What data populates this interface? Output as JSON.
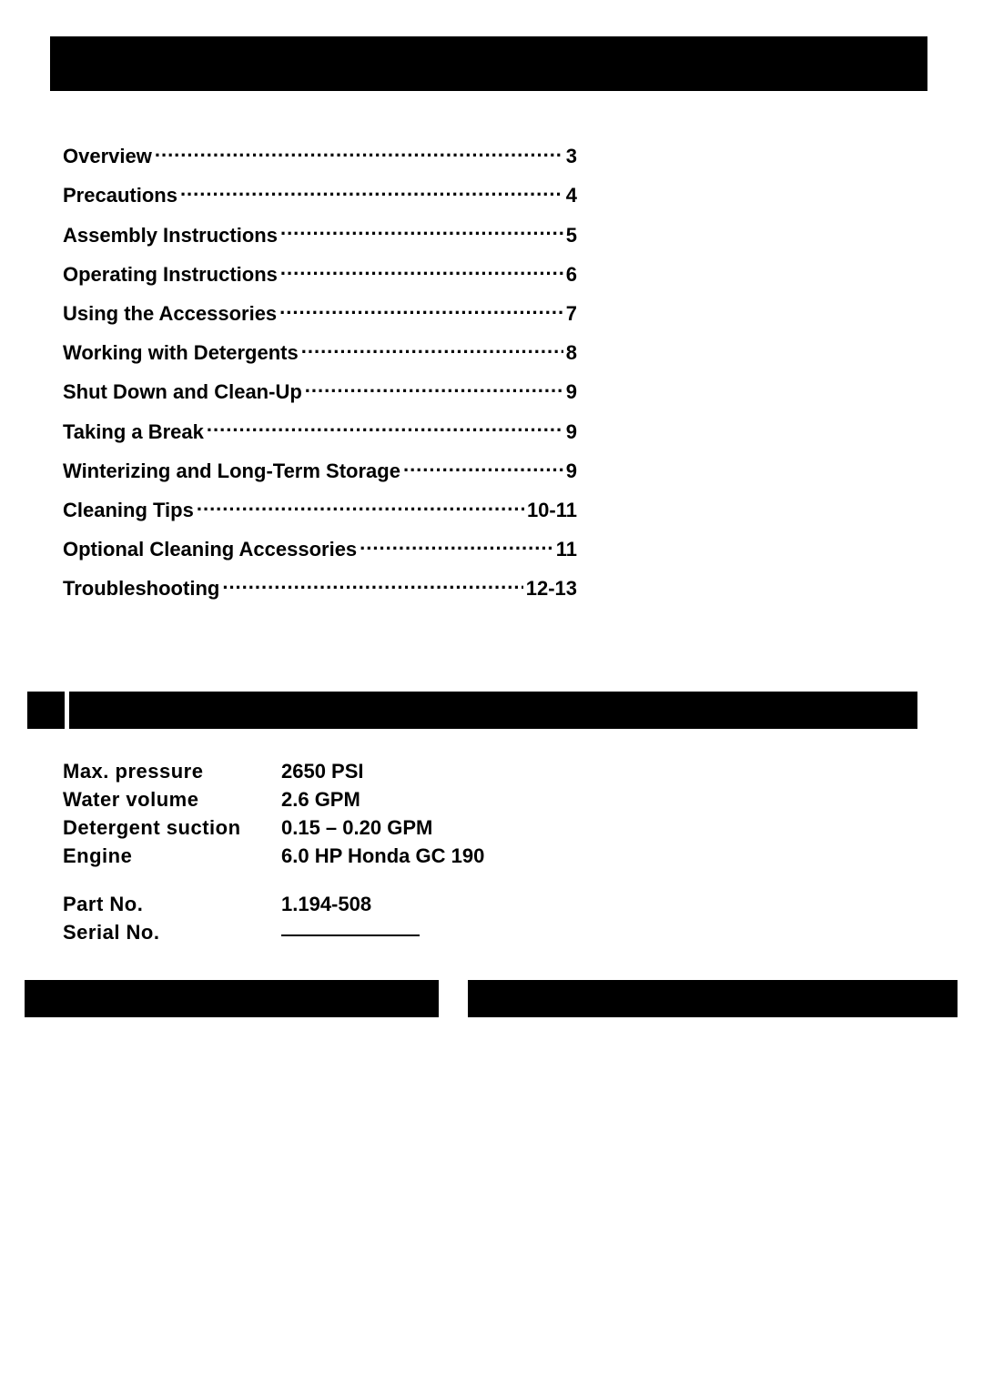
{
  "colors": {
    "text": "#000000",
    "bar": "#000000",
    "bg": "#ffffff"
  },
  "typography": {
    "family": "Arial",
    "size_pt": 16,
    "weight": "bold"
  },
  "toc": [
    {
      "title": "Overview",
      "page": "3"
    },
    {
      "title": "Precautions",
      "page": "4"
    },
    {
      "title": "Assembly Instructions",
      "page": "5"
    },
    {
      "title": "Operating Instructions",
      "page": "6"
    },
    {
      "title": "Using the Accessories",
      "page": "7"
    },
    {
      "title": "Working with Detergents",
      "page": "8"
    },
    {
      "title": "Shut Down and Clean-Up",
      "page": "9"
    },
    {
      "title": "Taking a Break",
      "page": "9"
    },
    {
      "title": "Winterizing and Long-Term Storage",
      "page": "9"
    },
    {
      "title": "Cleaning Tips",
      "page": "10-11"
    },
    {
      "title": "Optional Cleaning Accessories",
      "page": "11"
    },
    {
      "title": "Troubleshooting",
      "page": "12-13"
    }
  ],
  "specs": {
    "rows": [
      {
        "label": "Max. pressure",
        "value": "2650 PSI"
      },
      {
        "label": "Water volume",
        "value": "2.6 GPM"
      },
      {
        "label": "Detergent suction",
        "value": "0.15 – 0.20 GPM"
      },
      {
        "label": "Engine",
        "value": "6.0 HP Honda GC 190"
      }
    ],
    "part_no_label": "Part No.",
    "part_no_value": "1.194-508",
    "serial_no_label": "Serial No."
  }
}
